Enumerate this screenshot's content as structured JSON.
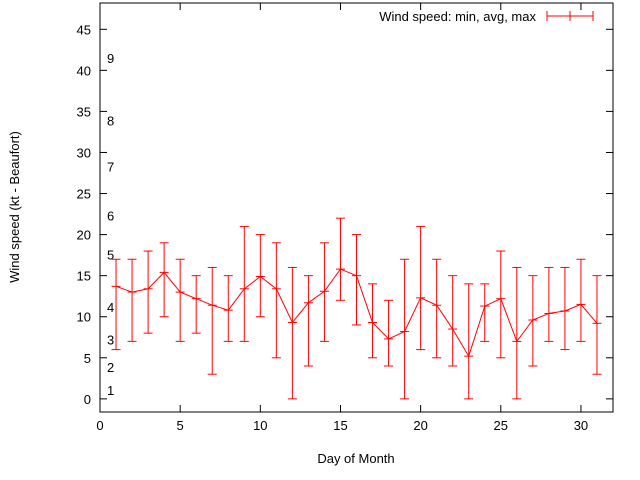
{
  "chart_data": {
    "type": "line",
    "style": "yerrorlines",
    "title": "",
    "xlabel": "Day of Month",
    "ylabel": "Wind speed (kt - Beaufort)",
    "legend": {
      "label": "Wind speed: min, avg, max",
      "position": "top-right"
    },
    "series_color": "#ff0000",
    "axis_color": "#000000",
    "background_color": "#ffffff",
    "xlim": [
      0,
      32
    ],
    "ylim": [
      -1.6,
      48.2
    ],
    "x_ticks": [
      0,
      5,
      10,
      15,
      20,
      25,
      30
    ],
    "y_ticks": [
      0,
      5,
      10,
      15,
      20,
      25,
      30,
      35,
      40,
      45
    ],
    "grid": false,
    "x": [
      1,
      2,
      3,
      4,
      5,
      6,
      7,
      8,
      9,
      10,
      11,
      12,
      13,
      14,
      15,
      16,
      17,
      18,
      19,
      20,
      21,
      22,
      23,
      24,
      25,
      26,
      27,
      28,
      29,
      30,
      31
    ],
    "series": [
      {
        "name": "min",
        "values": [
          6,
          7,
          8,
          10,
          7,
          8,
          3,
          7,
          7,
          10,
          5,
          0,
          4,
          7,
          12,
          9,
          5,
          4,
          0,
          6,
          5,
          4,
          0,
          7,
          5,
          0,
          4,
          7,
          6,
          7,
          3
        ]
      },
      {
        "name": "avg",
        "values": [
          13.7,
          13.0,
          13.4,
          15.4,
          13.0,
          12.2,
          11.4,
          10.8,
          13.4,
          14.9,
          13.4,
          9.3,
          11.7,
          13.1,
          15.8,
          15.0,
          9.3,
          7.3,
          8.2,
          12.3,
          11.4,
          8.5,
          5.2,
          11.3,
          12.2,
          7.0,
          9.6,
          10.4,
          10.7,
          11.5,
          9.2
        ]
      },
      {
        "name": "max",
        "values": [
          17,
          17,
          18,
          19,
          17,
          15,
          16,
          15,
          21,
          20,
          19,
          16,
          15,
          19,
          22,
          20,
          14,
          12,
          17,
          21,
          17,
          15,
          14,
          14,
          18,
          16,
          15,
          16,
          16,
          17,
          15
        ]
      }
    ],
    "beaufort_scale": [
      {
        "label": "1",
        "kt": 1.1
      },
      {
        "label": "2",
        "kt": 3.9
      },
      {
        "label": "3",
        "kt": 7.2
      },
      {
        "label": "4",
        "kt": 11.2
      },
      {
        "label": "5",
        "kt": 17.6
      },
      {
        "label": "6",
        "kt": 22.3
      },
      {
        "label": "7",
        "kt": 28.3
      },
      {
        "label": "8",
        "kt": 33.9
      },
      {
        "label": "9",
        "kt": 41.5
      }
    ]
  }
}
